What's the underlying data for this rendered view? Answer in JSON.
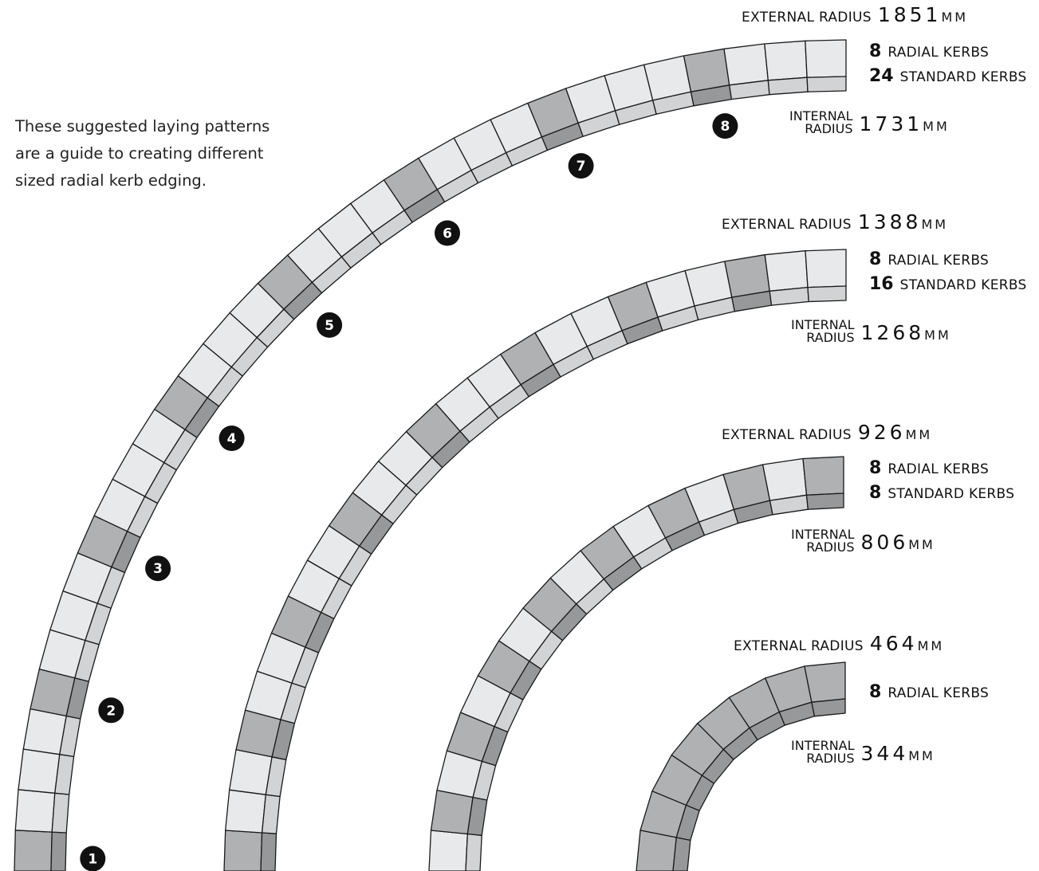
{
  "intro": {
    "line1": "These suggested laying patterns",
    "line2": "are a guide to creating different",
    "line3": "sized radial kerb edging."
  },
  "arcs": [
    {
      "external_label": "EXTERNAL RADIUS",
      "external_value": "1851",
      "external_unit": "MM",
      "radial_count": "8",
      "radial_label": "RADIAL KERBS",
      "standard_count": "24",
      "standard_label": "STANDARD KERBS",
      "internal_label_1": "INTERNAL",
      "internal_label_2": "RADIUS",
      "internal_value": "1731",
      "internal_unit": "MM",
      "markers": [
        "1",
        "2",
        "3",
        "4",
        "5",
        "6",
        "7",
        "8"
      ]
    },
    {
      "external_label": "EXTERNAL RADIUS",
      "external_value": "1388",
      "external_unit": "MM",
      "radial_count": "8",
      "radial_label": "RADIAL KERBS",
      "standard_count": "16",
      "standard_label": "STANDARD KERBS",
      "internal_label_1": "INTERNAL",
      "internal_label_2": "RADIUS",
      "internal_value": "1268",
      "internal_unit": "MM"
    },
    {
      "external_label": "EXTERNAL RADIUS",
      "external_value": "926",
      "external_unit": "MM",
      "radial_count": "8",
      "radial_label": "RADIAL KERBS",
      "standard_count": "8",
      "standard_label": "STANDARD KERBS",
      "internal_label_1": "INTERNAL",
      "internal_label_2": "RADIUS",
      "internal_value": "806",
      "internal_unit": "MM"
    },
    {
      "external_label": "EXTERNAL RADIUS",
      "external_value": "464",
      "external_unit": "MM",
      "radial_count": "8",
      "radial_label": "RADIAL KERBS",
      "internal_label_1": "INTERNAL",
      "internal_label_2": "RADIUS",
      "internal_value": "344",
      "internal_unit": "MM"
    }
  ],
  "colors": {
    "standard_top": "#e8e9eb",
    "standard_edge": "#d2d3d5",
    "radial_top": "#b0b1b3",
    "radial_edge": "#97989a",
    "outline": "#1a1a1a",
    "marker": "#111111"
  }
}
